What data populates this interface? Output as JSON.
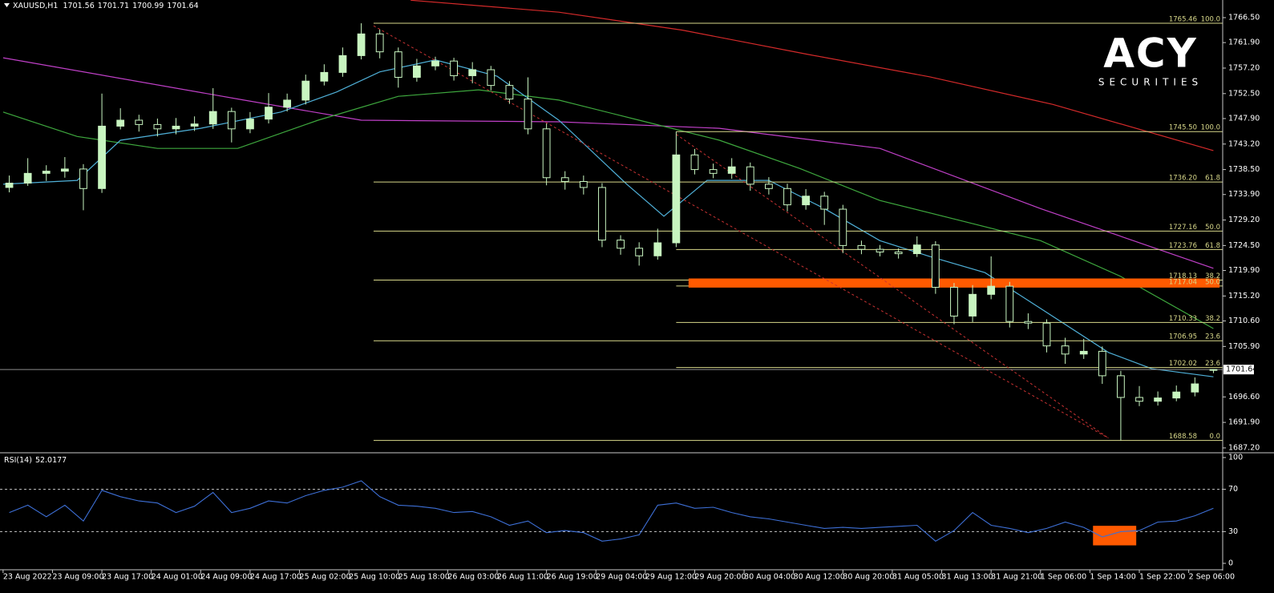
{
  "logo": {
    "brand": "ACY",
    "tagline": "SECURITIES"
  },
  "chart_data": [
    {
      "type": "candlestick",
      "title": "XAUUSD,H1",
      "x": [
        1,
        4,
        7,
        10,
        13,
        16,
        19,
        22,
        25,
        28,
        31,
        34,
        37,
        40,
        43,
        46,
        49,
        52,
        55,
        58,
        61,
        64,
        67,
        70,
        73,
        76,
        79,
        82,
        85,
        88,
        91,
        94,
        97,
        100,
        103,
        106,
        109,
        112,
        115,
        118,
        121,
        124,
        127,
        130,
        133,
        136,
        139,
        142,
        145,
        148,
        151,
        154,
        157,
        160,
        163,
        166,
        169,
        172,
        175,
        178,
        181,
        184,
        187,
        190,
        193,
        196
      ],
      "open": [
        1735.2,
        1736.0,
        1737.8,
        1738.2,
        1738.6,
        1735.0,
        1746.5,
        1747.6,
        1746.8,
        1746.0,
        1746.5,
        1746.9,
        1749.2,
        1746.0,
        1747.8,
        1750.0,
        1751.3,
        1754.8,
        1756.4,
        1759.5,
        1763.5,
        1760.2,
        1755.5,
        1757.6,
        1758.5,
        1755.8,
        1756.9,
        1754.0,
        1751.5,
        1746.0,
        1737.0,
        1736.3,
        1735.2,
        1725.5,
        1724.0,
        1722.6,
        1725.0,
        1741.2,
        1738.5,
        1737.8,
        1739.0,
        1735.8,
        1735.0,
        1732.0,
        1733.6,
        1731.2,
        1724.5,
        1723.8,
        1723.3,
        1723.0,
        1724.6,
        1716.8,
        1711.5,
        1715.5,
        1717.0,
        1710.5,
        1710.2,
        1706.0,
        1704.5,
        1705.0,
        1700.5,
        1696.5,
        1695.8,
        1696.4,
        1697.5,
        1701.56
      ],
      "high": [
        1737.4,
        1740.6,
        1739.3,
        1740.8,
        1739.5,
        1752.5,
        1749.8,
        1748.6,
        1747.9,
        1748.0,
        1748.3,
        1753.5,
        1749.9,
        1749.1,
        1752.6,
        1752.5,
        1756.0,
        1757.9,
        1761.0,
        1765.46,
        1764.3,
        1761.0,
        1758.9,
        1759.3,
        1759.1,
        1758.3,
        1757.6,
        1754.8,
        1755.5,
        1747.0,
        1738.2,
        1737.4,
        1736.0,
        1726.4,
        1725.1,
        1727.6,
        1745.5,
        1742.3,
        1739.6,
        1740.6,
        1739.8,
        1737.1,
        1735.9,
        1734.9,
        1734.4,
        1732.0,
        1725.4,
        1724.6,
        1724.0,
        1726.2,
        1725.3,
        1717.6,
        1717.2,
        1722.5,
        1717.8,
        1712.0,
        1710.9,
        1707.5,
        1707.3,
        1705.9,
        1701.4,
        1698.6,
        1697.6,
        1698.7,
        1700.2,
        1701.71
      ],
      "low": [
        1734.3,
        1735.5,
        1736.4,
        1737.0,
        1731.0,
        1734.2,
        1745.9,
        1745.5,
        1744.6,
        1745.0,
        1745.6,
        1746.0,
        1743.5,
        1745.2,
        1747.0,
        1749.2,
        1750.5,
        1754.0,
        1755.6,
        1758.8,
        1759.0,
        1753.6,
        1754.7,
        1756.8,
        1754.9,
        1754.4,
        1753.1,
        1750.6,
        1745.0,
        1735.6,
        1734.8,
        1733.9,
        1724.2,
        1722.8,
        1720.8,
        1721.9,
        1724.2,
        1737.6,
        1736.9,
        1736.8,
        1734.6,
        1733.9,
        1730.8,
        1731.1,
        1728.3,
        1723.1,
        1722.9,
        1722.5,
        1722.1,
        1722.4,
        1715.6,
        1710.0,
        1710.4,
        1714.6,
        1709.4,
        1709.1,
        1704.8,
        1702.7,
        1703.6,
        1699.0,
        1688.58,
        1694.9,
        1695.0,
        1695.8,
        1696.7,
        1700.99
      ],
      "close": [
        1736.0,
        1737.8,
        1738.2,
        1738.6,
        1735.0,
        1746.5,
        1747.6,
        1746.8,
        1746.0,
        1746.5,
        1746.9,
        1749.2,
        1746.0,
        1747.8,
        1750.0,
        1751.3,
        1754.8,
        1756.4,
        1759.5,
        1763.5,
        1760.2,
        1755.5,
        1757.6,
        1758.5,
        1755.8,
        1756.9,
        1754.0,
        1751.5,
        1746.0,
        1737.0,
        1736.3,
        1735.2,
        1725.5,
        1724.0,
        1722.6,
        1725.0,
        1741.2,
        1738.5,
        1737.8,
        1739.0,
        1735.8,
        1735.0,
        1732.0,
        1733.6,
        1731.2,
        1724.5,
        1723.8,
        1723.3,
        1723.0,
        1724.6,
        1716.8,
        1711.5,
        1715.5,
        1717.0,
        1710.5,
        1710.2,
        1706.0,
        1704.5,
        1705.0,
        1700.5,
        1696.5,
        1695.8,
        1696.4,
        1697.5,
        1699.0,
        1701.64
      ],
      "up_color": "#c8f5c0",
      "down_color": "#000000",
      "edge_color": "#c8f5c0",
      "xlim": [
        -0.5,
        197.5
      ],
      "xticks": [
        {
          "value": 0,
          "label": "23 Aug 2022"
        },
        {
          "value": 8,
          "label": "23 Aug 09:00"
        },
        {
          "value": 16,
          "label": "23 Aug 17:00"
        },
        {
          "value": 24,
          "label": "24 Aug 01:00"
        },
        {
          "value": 32,
          "label": "24 Aug 09:00"
        },
        {
          "value": 40,
          "label": "24 Aug 17:00"
        },
        {
          "value": 48,
          "label": "25 Aug 02:00"
        },
        {
          "value": 56,
          "label": "25 Aug 10:00"
        },
        {
          "value": 64,
          "label": "25 Aug 18:00"
        },
        {
          "value": 72,
          "label": "26 Aug 03:00"
        },
        {
          "value": 80,
          "label": "26 Aug 11:00"
        },
        {
          "value": 88,
          "label": "26 Aug 19:00"
        },
        {
          "value": 96,
          "label": "29 Aug 04:00"
        },
        {
          "value": 104,
          "label": "29 Aug 12:00"
        },
        {
          "value": 112,
          "label": "29 Aug 20:00"
        },
        {
          "value": 120,
          "label": "30 Aug 04:00"
        },
        {
          "value": 128,
          "label": "30 Aug 12:00"
        },
        {
          "value": 136,
          "label": "30 Aug 20:00"
        },
        {
          "value": 144,
          "label": "31 Aug 05:00"
        },
        {
          "value": 152,
          "label": "31 Aug 13:00"
        },
        {
          "value": 160,
          "label": "31 Aug 21:00"
        },
        {
          "value": 168,
          "label": "1 Sep 06:00"
        },
        {
          "value": 176,
          "label": "1 Sep 14:00"
        },
        {
          "value": 184,
          "label": "1 Sep 22:00"
        },
        {
          "value": 192,
          "label": "2 Sep 06:00"
        }
      ],
      "ylim": [
        1686.6,
        1769.75
      ],
      "yticks": [
        {
          "value": 1766.5,
          "label": "1766.50"
        },
        {
          "value": 1761.9,
          "label": "1761.90"
        },
        {
          "value": 1757.2,
          "label": "1757.20"
        },
        {
          "value": 1752.5,
          "label": "1752.50"
        },
        {
          "value": 1747.9,
          "label": "1747.90"
        },
        {
          "value": 1743.2,
          "label": "1743.20"
        },
        {
          "value": 1738.5,
          "label": "1738.50"
        },
        {
          "value": 1733.9,
          "label": "1733.90"
        },
        {
          "value": 1729.2,
          "label": "1729.20"
        },
        {
          "value": 1724.5,
          "label": "1724.50"
        },
        {
          "value": 1719.9,
          "label": "1719.90"
        },
        {
          "value": 1715.2,
          "label": "1715.20"
        },
        {
          "value": 1710.6,
          "label": "1710.60"
        },
        {
          "value": 1705.9,
          "label": "1705.90"
        },
        {
          "value": 1696.6,
          "label": "1696.60"
        },
        {
          "value": 1691.9,
          "label": "1691.90"
        },
        {
          "value": 1687.2,
          "label": "1687.20"
        }
      ],
      "grid": false,
      "overlays": [
        {
          "color": "#d42a2a",
          "x": [
            66,
            90,
            110,
            130,
            150,
            170,
            196
          ],
          "values": [
            1769.7,
            1767.5,
            1764.2,
            1759.8,
            1755.6,
            1750.5,
            1742.0
          ]
        },
        {
          "color": "#c040c8",
          "x": [
            0,
            39,
            58,
            90,
            116,
            142,
            168,
            196
          ],
          "values": [
            1759.1,
            1751.3,
            1747.6,
            1747.3,
            1746.1,
            1742.4,
            1731.3,
            1720.3
          ]
        },
        {
          "color": "#3ea83e",
          "x": [
            0,
            12,
            25,
            38,
            51,
            64,
            77,
            90,
            103,
            116,
            129,
            142,
            155,
            168,
            181,
            196
          ],
          "values": [
            1749.1,
            1744.6,
            1742.4,
            1742.4,
            1747.6,
            1752.0,
            1753.2,
            1751.3,
            1747.6,
            1743.9,
            1738.7,
            1732.8,
            1729.1,
            1725.4,
            1718.8,
            1709.2
          ]
        },
        {
          "color": "#4fb0d8",
          "x": [
            0,
            12,
            19,
            32,
            45,
            54,
            61,
            70,
            80,
            90,
            101,
            107,
            114,
            124,
            133,
            142,
            150,
            159,
            168,
            179,
            186,
            196
          ],
          "values": [
            1735.8,
            1736.5,
            1743.9,
            1746.1,
            1749.1,
            1752.8,
            1756.5,
            1758.7,
            1755.7,
            1747.6,
            1735.8,
            1729.9,
            1736.5,
            1736.5,
            1731.3,
            1725.4,
            1722.5,
            1719.5,
            1712.9,
            1704.8,
            1701.8,
            1700.3
          ]
        }
      ],
      "fib_color": "#d8d88a",
      "fib_levels": [
        {
          "price": {
            "value": 1765.46,
            "label": "1765.46"
          },
          "ratio": "100.0",
          "start": 60
        },
        {
          "price": {
            "value": 1745.5,
            "label": "1745.50"
          },
          "ratio": "100.0",
          "start": 109
        },
        {
          "price": {
            "value": 1736.2,
            "label": "1736.20"
          },
          "ratio": "61.8",
          "start": 60
        },
        {
          "price": {
            "value": 1727.16,
            "label": "1727.16"
          },
          "ratio": "50.0",
          "start": 60
        },
        {
          "price": {
            "value": 1723.76,
            "label": "1723.76"
          },
          "ratio": "61.8",
          "start": 109
        },
        {
          "price": {
            "value": 1718.13,
            "label": "1718.13"
          },
          "ratio": "38.2",
          "start": 60
        },
        {
          "price": {
            "value": 1717.04,
            "label": "1717.04"
          },
          "ratio": "50.0",
          "start": 109
        },
        {
          "price": {
            "value": 1710.33,
            "label": "1710.33"
          },
          "ratio": "38.2",
          "start": 109
        },
        {
          "price": {
            "value": 1706.95,
            "label": "1706.95"
          },
          "ratio": "23.6",
          "start": 60
        },
        {
          "price": {
            "value": 1702.02,
            "label": "1702.02"
          },
          "ratio": "23.6",
          "start": 109
        },
        {
          "price": {
            "value": 1688.58,
            "label": "1688.58"
          },
          "ratio": "0.0",
          "start": 60
        }
      ],
      "zone": {
        "from": 111,
        "to": 197,
        "low": 1717.04,
        "high": 1718.13,
        "color": "#ff5a00"
      },
      "trend_color": "#c83232",
      "trendlines": [
        {
          "x": [
            60,
            179
          ],
          "values": [
            1765.0,
            1689.0
          ]
        },
        {
          "x": [
            109,
            179
          ],
          "values": [
            1745.0,
            1689.0
          ]
        }
      ],
      "price_line_color": "#8c8c8c"
    },
    {
      "type": "line",
      "title": "RSI(14)",
      "x": [
        1,
        4,
        7,
        10,
        13,
        16,
        19,
        22,
        25,
        28,
        31,
        34,
        37,
        40,
        43,
        46,
        49,
        52,
        55,
        58,
        61,
        64,
        67,
        70,
        73,
        76,
        79,
        82,
        85,
        88,
        91,
        94,
        97,
        100,
        103,
        106,
        109,
        112,
        115,
        118,
        121,
        124,
        127,
        130,
        133,
        136,
        139,
        142,
        145,
        148,
        151,
        154,
        157,
        160,
        163,
        166,
        169,
        172,
        175,
        178,
        181,
        184,
        187,
        190,
        193,
        196
      ],
      "series": [
        {
          "color": "#3d6fd6",
          "values": [
            48,
            55,
            44,
            55,
            40,
            69,
            63,
            59,
            57,
            48,
            54,
            67,
            48,
            52,
            59,
            57,
            64,
            69,
            72,
            78,
            63,
            55,
            54,
            52,
            48,
            49,
            44,
            36,
            40,
            29,
            31,
            29,
            21,
            23,
            27,
            55,
            57,
            52,
            53,
            48,
            44,
            42,
            39,
            36,
            33,
            34,
            33,
            34,
            35,
            36,
            21,
            31,
            48,
            36,
            33,
            29,
            33,
            39,
            34,
            25,
            30,
            31,
            39,
            40,
            45,
            52.0177
          ]
        }
      ],
      "ylim": [
        -5.3,
        103
      ],
      "yticks": [
        0,
        30,
        70,
        100
      ],
      "levels": [
        30,
        70
      ],
      "zone": {
        "from": 176.5,
        "to": 183.5,
        "low": 17,
        "high": 35.5,
        "color": "#ff5a00"
      }
    }
  ]
}
